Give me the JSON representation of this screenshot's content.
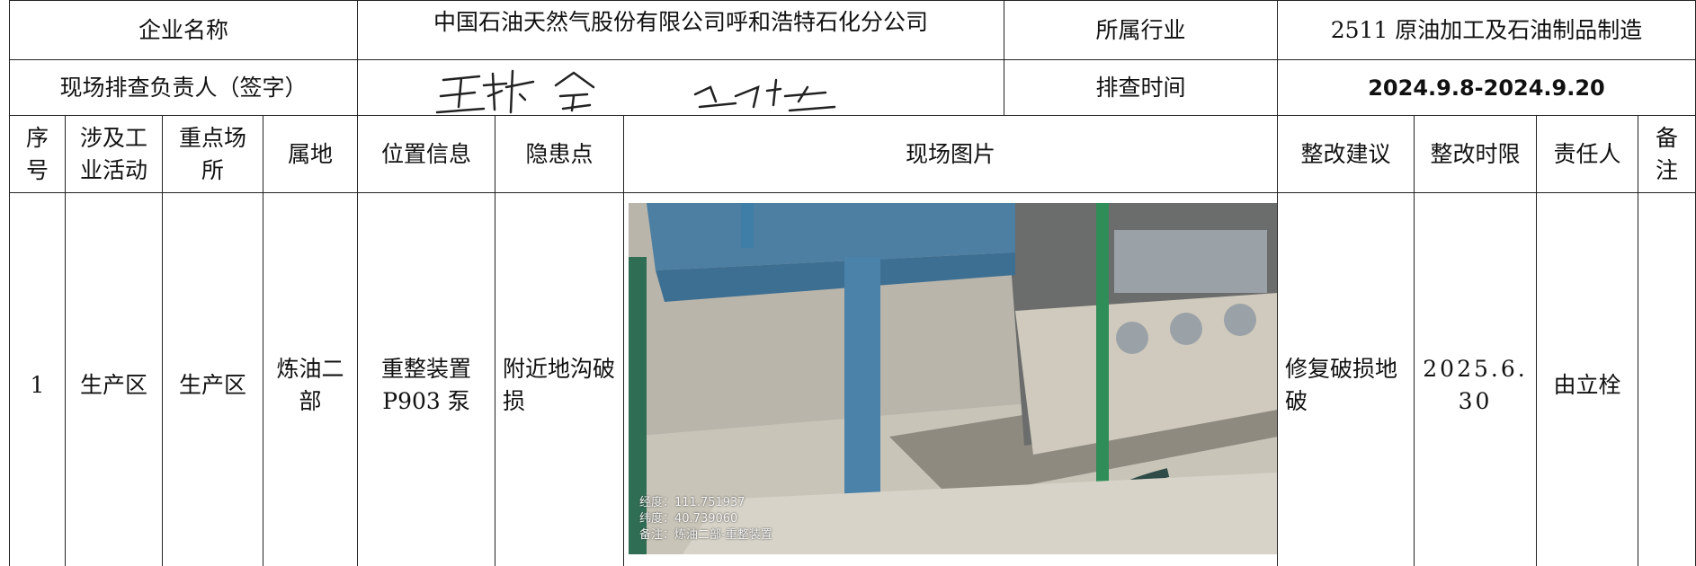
{
  "header": {
    "company_label": "企业名称",
    "company": "中国石油天然气股份有限公司呼和浩特石化分公司",
    "industry_label": "所属行业",
    "industry": "2511 原油加工及石油制品制造",
    "inspector_label": "现场排查负责人（签字）",
    "time_label": "排查时间",
    "time": "2024.9.8-2024.9.20"
  },
  "table": {
    "columns": [
      "序号",
      "涉及工业活动",
      "重点场所",
      "属地",
      "位置信息",
      "隐患点",
      "现场图片",
      "整改建议",
      "整改时限",
      "责任人",
      "备注"
    ],
    "rows": [
      {
        "no": "1",
        "activity": "生产区",
        "site": "生产区",
        "area": "炼油二部",
        "location": "重整装置P903 泵",
        "hazard": "附近地沟破损",
        "photo_caption": [
          "经度：111.751937",
          "纬度：40.739060",
          "备注：炼油二部-重整装置"
        ],
        "suggestion": "修复破损地破",
        "deadline": "2025.6.30",
        "owner": "由立栓",
        "remark": ""
      }
    ]
  }
}
